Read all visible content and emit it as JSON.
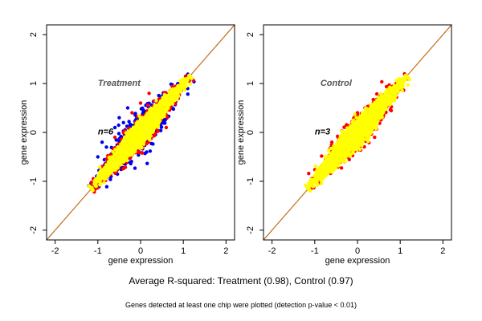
{
  "chart_data": [
    {
      "type": "scatter",
      "title": "Treatment",
      "annotation": "n=6",
      "xlabel": "gene expression",
      "ylabel": "gene expression",
      "xlim": [
        -2.2,
        2.2
      ],
      "ylim": [
        -2.2,
        2.2
      ],
      "xticks": [
        "-2",
        "-1",
        "0",
        "1",
        "2"
      ],
      "yticks": [
        "-2",
        "-1",
        "0",
        "1",
        "2"
      ],
      "reference_lines": [
        {
          "kind": "identity y=x",
          "colors": [
            "#1a1a8c",
            "#e07b00"
          ]
        }
      ],
      "series": [
        {
          "color": "#0000ee",
          "layer": 1,
          "spread": 0.22,
          "count": 900,
          "sample_points": [
            [
              -0.8,
              -0.3
            ],
            [
              -0.5,
              0.3
            ],
            [
              -0.3,
              0.5
            ],
            [
              -0.6,
              0.1
            ],
            [
              -1.0,
              -0.5
            ],
            [
              -0.9,
              -0.2
            ],
            [
              -1.1,
              -1.1
            ],
            [
              -0.4,
              0.2
            ]
          ]
        },
        {
          "color": "#ff0000",
          "layer": 2,
          "spread": 0.16,
          "count": 900,
          "sample_points": [
            [
              -0.2,
              0.4
            ],
            [
              0.0,
              0.6
            ],
            [
              0.2,
              0.8
            ],
            [
              -0.6,
              -0.1
            ],
            [
              0.8,
              0.7
            ],
            [
              0.6,
              0.1
            ],
            [
              -0.4,
              0.0
            ]
          ]
        },
        {
          "color": "#ffff00",
          "layer": 3,
          "spread": 0.11,
          "count": 3500,
          "sample_points": [
            [
              -1.0,
              -1.0
            ],
            [
              0.0,
              0.0
            ],
            [
              1.0,
              1.0
            ],
            [
              0.3,
              0.2
            ],
            [
              -0.5,
              -0.4
            ]
          ]
        }
      ]
    },
    {
      "type": "scatter",
      "title": "Control",
      "annotation": "n=3",
      "xlabel": "gene expression",
      "ylabel": "gene expression",
      "xlim": [
        -2.2,
        2.2
      ],
      "ylim": [
        -2.2,
        2.2
      ],
      "xticks": [
        "-2",
        "-1",
        "0",
        "1",
        "2"
      ],
      "yticks": [
        "-2",
        "-1",
        "0",
        "1",
        "2"
      ],
      "reference_lines": [
        {
          "kind": "identity y=x",
          "colors": [
            "#1a1a8c",
            "#e07b00"
          ]
        }
      ],
      "series": [
        {
          "color": "#ff0000",
          "layer": 2,
          "spread": 0.17,
          "count": 1100,
          "sample_points": [
            [
              -0.6,
              -0.2
            ],
            [
              0.0,
              0.4
            ],
            [
              -0.3,
              -0.6
            ],
            [
              0.4,
              -0.1
            ],
            [
              0.9,
              1.0
            ],
            [
              -1.0,
              -1.0
            ]
          ]
        },
        {
          "color": "#ffff00",
          "layer": 3,
          "spread": 0.13,
          "count": 3500,
          "sample_points": [
            [
              -1.0,
              -1.0
            ],
            [
              0.0,
              0.0
            ],
            [
              1.0,
              1.0
            ],
            [
              0.4,
              0.5
            ],
            [
              -0.5,
              -0.5
            ]
          ]
        }
      ]
    }
  ],
  "captions": {
    "main": "Average R-squared: Treatment (0.98), Control (0.97)",
    "note": "Genes detected at least one chip were plotted (detection p-value < 0.01)"
  }
}
